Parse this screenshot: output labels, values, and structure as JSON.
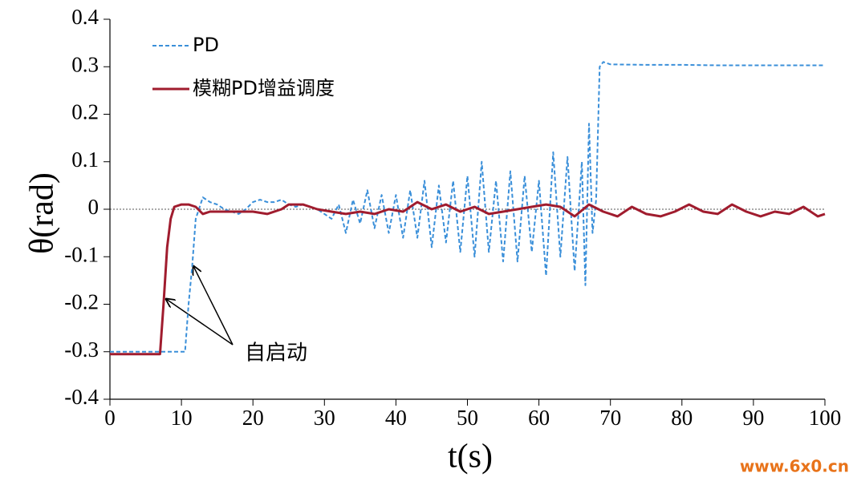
{
  "chart_data": {
    "type": "line",
    "x_label": "t(s)",
    "y_label": "θ(rad)",
    "annotation": "自启动",
    "watermark": "www.6x0.cn",
    "xlim": [
      0,
      100
    ],
    "ylim": [
      -0.4,
      0.4
    ],
    "xticks": [
      0,
      10,
      20,
      30,
      40,
      50,
      60,
      70,
      80,
      90,
      100
    ],
    "yticks": [
      -0.4,
      -0.3,
      -0.2,
      -0.1,
      0,
      0.1,
      0.2,
      0.3,
      0.4
    ],
    "grid": false,
    "zero_line": true,
    "legend": "upper left",
    "series": [
      {
        "name": "PD",
        "color": "#3a8fd9",
        "dashed": true,
        "x": [
          0,
          5,
          10.5,
          11,
          11.5,
          12,
          13,
          14,
          15,
          16,
          17,
          18,
          19,
          20,
          21,
          22,
          23,
          24,
          25,
          26,
          27,
          28,
          29,
          30,
          31,
          32,
          33,
          34,
          35,
          36,
          37,
          38,
          39,
          40,
          41,
          42,
          43,
          44,
          45,
          46,
          47,
          48,
          49,
          50,
          51,
          52,
          53,
          54,
          55,
          56,
          57,
          58,
          59,
          60,
          61,
          62,
          63,
          64,
          65,
          66,
          66.5,
          67,
          67.5,
          68,
          68.5,
          69,
          70,
          75,
          80,
          85,
          90,
          95,
          100
        ],
        "values": [
          -0.3,
          -0.3,
          -0.3,
          -0.2,
          -0.12,
          -0.02,
          0.025,
          0.015,
          0.01,
          0,
          -0.005,
          -0.01,
          0,
          0.015,
          0.02,
          0.015,
          0.015,
          0.02,
          0.01,
          0.005,
          0.01,
          0.005,
          0,
          -0.01,
          -0.02,
          0.01,
          -0.05,
          0.02,
          -0.03,
          0.04,
          -0.04,
          0.03,
          -0.05,
          0.03,
          -0.06,
          0.04,
          -0.06,
          0.06,
          -0.08,
          0.05,
          -0.07,
          0.06,
          -0.09,
          0.07,
          -0.1,
          0.1,
          -0.09,
          0.06,
          -0.11,
          0.08,
          -0.11,
          0.07,
          -0.09,
          0.06,
          -0.14,
          0.12,
          -0.1,
          0.11,
          -0.13,
          0.1,
          -0.16,
          0.18,
          -0.05,
          0.02,
          0.3,
          0.31,
          0.305,
          0.304,
          0.304,
          0.303,
          0.303,
          0.303,
          0.303
        ]
      },
      {
        "name": "模糊PD增益调度",
        "color": "#a01c2e",
        "dashed": false,
        "x": [
          0,
          3,
          7,
          7.5,
          8,
          8.5,
          9,
          10,
          11,
          12,
          13,
          14,
          16,
          18,
          20,
          22,
          24,
          25,
          27,
          29,
          31,
          33,
          35,
          37,
          39,
          41,
          43,
          45,
          47,
          49,
          51,
          53,
          55,
          57,
          59,
          61,
          63,
          65,
          67,
          69,
          71,
          73,
          75,
          77,
          79,
          81,
          83,
          85,
          87,
          89,
          91,
          93,
          95,
          97,
          99,
          100
        ],
        "values": [
          -0.305,
          -0.305,
          -0.305,
          -0.2,
          -0.08,
          -0.02,
          0.005,
          0.01,
          0.01,
          0.005,
          -0.01,
          -0.005,
          -0.005,
          -0.005,
          -0.005,
          -0.01,
          0,
          0.01,
          0.01,
          0,
          -0.005,
          -0.01,
          -0.005,
          -0.01,
          0,
          -0.005,
          0.015,
          0,
          0.01,
          -0.005,
          0.005,
          -0.01,
          -0.005,
          0,
          0.005,
          0.01,
          0.005,
          -0.015,
          0.01,
          -0.005,
          -0.015,
          0.005,
          -0.01,
          -0.015,
          -0.005,
          0.01,
          -0.005,
          -0.01,
          0.01,
          -0.005,
          -0.015,
          -0.005,
          -0.01,
          0.005,
          -0.015,
          -0.01
        ]
      }
    ]
  }
}
